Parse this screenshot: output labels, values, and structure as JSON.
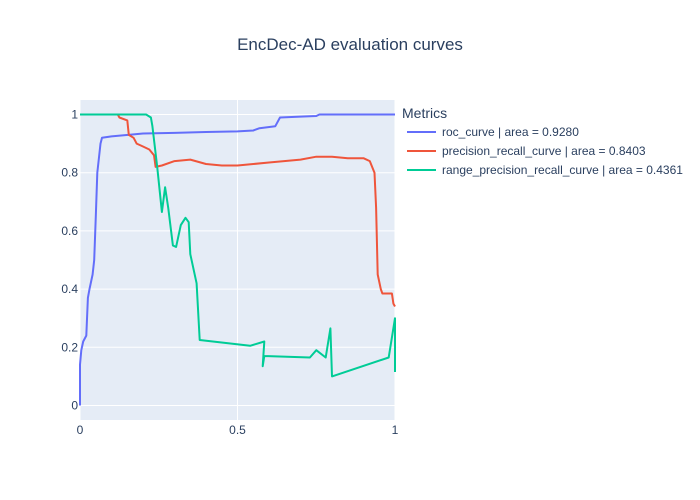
{
  "chart_data": {
    "type": "line",
    "title": "EncDec-AD evaluation curves",
    "xlabel": "",
    "ylabel": "",
    "xlim": [
      0,
      1
    ],
    "ylim": [
      -0.05,
      1.05
    ],
    "x_ticks": [
      0,
      0.5,
      1
    ],
    "x_tick_labels": [
      "0",
      "0.5",
      "1"
    ],
    "y_ticks": [
      0,
      0.2,
      0.4,
      0.6,
      0.8,
      1
    ],
    "y_tick_labels": [
      "0",
      "0.2",
      "0.4",
      "0.6",
      "0.8",
      "1"
    ],
    "grid": true,
    "legend_title": "Metrics",
    "legend_position": "right",
    "series": [
      {
        "name": "roc_curve | area = 0.9280",
        "color": "#636efa",
        "points": [
          [
            0,
            0
          ],
          [
            0,
            0.14
          ],
          [
            0.004,
            0.19
          ],
          [
            0.01,
            0.22
          ],
          [
            0.02,
            0.24
          ],
          [
            0.025,
            0.37
          ],
          [
            0.03,
            0.4
          ],
          [
            0.04,
            0.45
          ],
          [
            0.045,
            0.5
          ],
          [
            0.05,
            0.65
          ],
          [
            0.055,
            0.8
          ],
          [
            0.06,
            0.85
          ],
          [
            0.065,
            0.9
          ],
          [
            0.07,
            0.92
          ],
          [
            0.1,
            0.925
          ],
          [
            0.2,
            0.935
          ],
          [
            0.3,
            0.937
          ],
          [
            0.4,
            0.94
          ],
          [
            0.5,
            0.942
          ],
          [
            0.55,
            0.945
          ],
          [
            0.57,
            0.953
          ],
          [
            0.62,
            0.96
          ],
          [
            0.635,
            0.99
          ],
          [
            0.7,
            0.993
          ],
          [
            0.75,
            0.995
          ],
          [
            0.76,
            1
          ],
          [
            1,
            1
          ]
        ]
      },
      {
        "name": "precision_recall_curve | area = 0.8403",
        "color": "#ef553b",
        "points": [
          [
            0,
            1
          ],
          [
            0.12,
            1
          ],
          [
            0.125,
            0.99
          ],
          [
            0.15,
            0.98
          ],
          [
            0.155,
            0.93
          ],
          [
            0.17,
            0.92
          ],
          [
            0.18,
            0.9
          ],
          [
            0.2,
            0.89
          ],
          [
            0.22,
            0.88
          ],
          [
            0.235,
            0.86
          ],
          [
            0.24,
            0.82
          ],
          [
            0.26,
            0.825
          ],
          [
            0.3,
            0.84
          ],
          [
            0.35,
            0.845
          ],
          [
            0.4,
            0.83
          ],
          [
            0.45,
            0.825
          ],
          [
            0.5,
            0.825
          ],
          [
            0.55,
            0.83
          ],
          [
            0.6,
            0.835
          ],
          [
            0.7,
            0.845
          ],
          [
            0.75,
            0.855
          ],
          [
            0.8,
            0.855
          ],
          [
            0.85,
            0.85
          ],
          [
            0.9,
            0.85
          ],
          [
            0.92,
            0.84
          ],
          [
            0.935,
            0.8
          ],
          [
            0.94,
            0.68
          ],
          [
            0.945,
            0.45
          ],
          [
            0.955,
            0.4
          ],
          [
            0.96,
            0.385
          ],
          [
            0.99,
            0.385
          ],
          [
            0.995,
            0.35
          ],
          [
            1,
            0.34
          ]
        ]
      },
      {
        "name": "range_precision_recall_curve | area = 0.4361",
        "color": "#00cc96",
        "points": [
          [
            0,
            1
          ],
          [
            0.21,
            1
          ],
          [
            0.225,
            0.99
          ],
          [
            0.23,
            0.96
          ],
          [
            0.245,
            0.82
          ],
          [
            0.26,
            0.665
          ],
          [
            0.27,
            0.75
          ],
          [
            0.28,
            0.68
          ],
          [
            0.295,
            0.55
          ],
          [
            0.305,
            0.545
          ],
          [
            0.32,
            0.62
          ],
          [
            0.335,
            0.645
          ],
          [
            0.345,
            0.63
          ],
          [
            0.35,
            0.52
          ],
          [
            0.37,
            0.42
          ],
          [
            0.38,
            0.225
          ],
          [
            0.54,
            0.205
          ],
          [
            0.585,
            0.22
          ],
          [
            0.58,
            0.135
          ],
          [
            0.585,
            0.17
          ],
          [
            0.73,
            0.165
          ],
          [
            0.75,
            0.19
          ],
          [
            0.78,
            0.165
          ],
          [
            0.795,
            0.265
          ],
          [
            0.8,
            0.1
          ],
          [
            0.98,
            0.165
          ],
          [
            1,
            0.3
          ],
          [
            1,
            0.115
          ]
        ]
      }
    ]
  }
}
